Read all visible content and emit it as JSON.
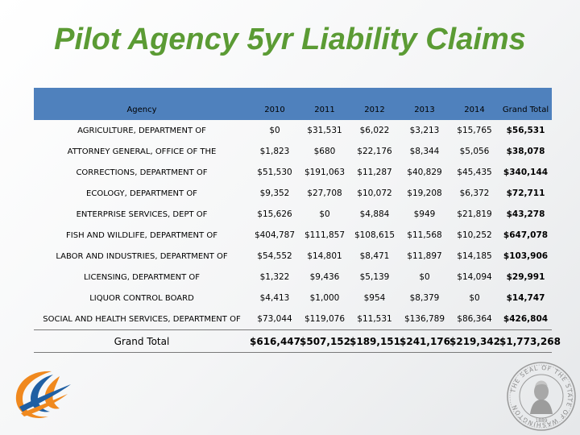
{
  "title": "Pilot Agency 5yr Liability Claims",
  "table": {
    "headers": [
      "Agency",
      "2010",
      "2011",
      "2012",
      "2013",
      "2014",
      "Grand Total"
    ],
    "rows": [
      [
        "AGRICULTURE, DEPARTMENT OF",
        "$0",
        "$31,531",
        "$6,022",
        "$3,213",
        "$15,765",
        "$56,531"
      ],
      [
        "ATTORNEY GENERAL, OFFICE OF THE",
        "$1,823",
        "$680",
        "$22,176",
        "$8,344",
        "$5,056",
        "$38,078"
      ],
      [
        "CORRECTIONS, DEPARTMENT OF",
        "$51,530",
        "$191,063",
        "$11,287",
        "$40,829",
        "$45,435",
        "$340,144"
      ],
      [
        "ECOLOGY, DEPARTMENT OF",
        "$9,352",
        "$27,708",
        "$10,072",
        "$19,208",
        "$6,372",
        "$72,711"
      ],
      [
        "ENTERPRISE SERVICES, DEPT OF",
        "$15,626",
        "$0",
        "$4,884",
        "$949",
        "$21,819",
        "$43,278"
      ],
      [
        "FISH AND WILDLIFE, DEPARTMENT OF",
        "$404,787",
        "$111,857",
        "$108,615",
        "$11,568",
        "$10,252",
        "$647,078"
      ],
      [
        "LABOR AND INDUSTRIES, DEPARTMENT OF",
        "$54,552",
        "$14,801",
        "$8,471",
        "$11,897",
        "$14,185",
        "$103,906"
      ],
      [
        "LICENSING, DEPARTMENT OF",
        "$1,322",
        "$9,436",
        "$5,139",
        "$0",
        "$14,094",
        "$29,991"
      ],
      [
        "LIQUOR CONTROL BOARD",
        "$4,413",
        "$1,000",
        "$954",
        "$8,379",
        "$0",
        "$14,747"
      ],
      [
        "SOCIAL AND HEALTH SERVICES, DEPARTMENT OF",
        "$73,044",
        "$119,076",
        "$11,531",
        "$136,789",
        "$86,364",
        "$426,804"
      ]
    ],
    "grand_total": [
      "Grand Total",
      "$616,447",
      "$507,152",
      "$189,151",
      "$241,176",
      "$219,342",
      "$1,773,268"
    ]
  },
  "colors": {
    "title": "#5b9b34",
    "header": "#4f81bd",
    "logo_orange": "#f0891e",
    "logo_blue": "#1f5fa3"
  },
  "logo_icon": "swoosh-logo-icon",
  "seal": {
    "icon": "state-seal-icon",
    "ring_text": "THE SEAL OF THE STATE OF WASHINGTON",
    "year": "1889"
  }
}
